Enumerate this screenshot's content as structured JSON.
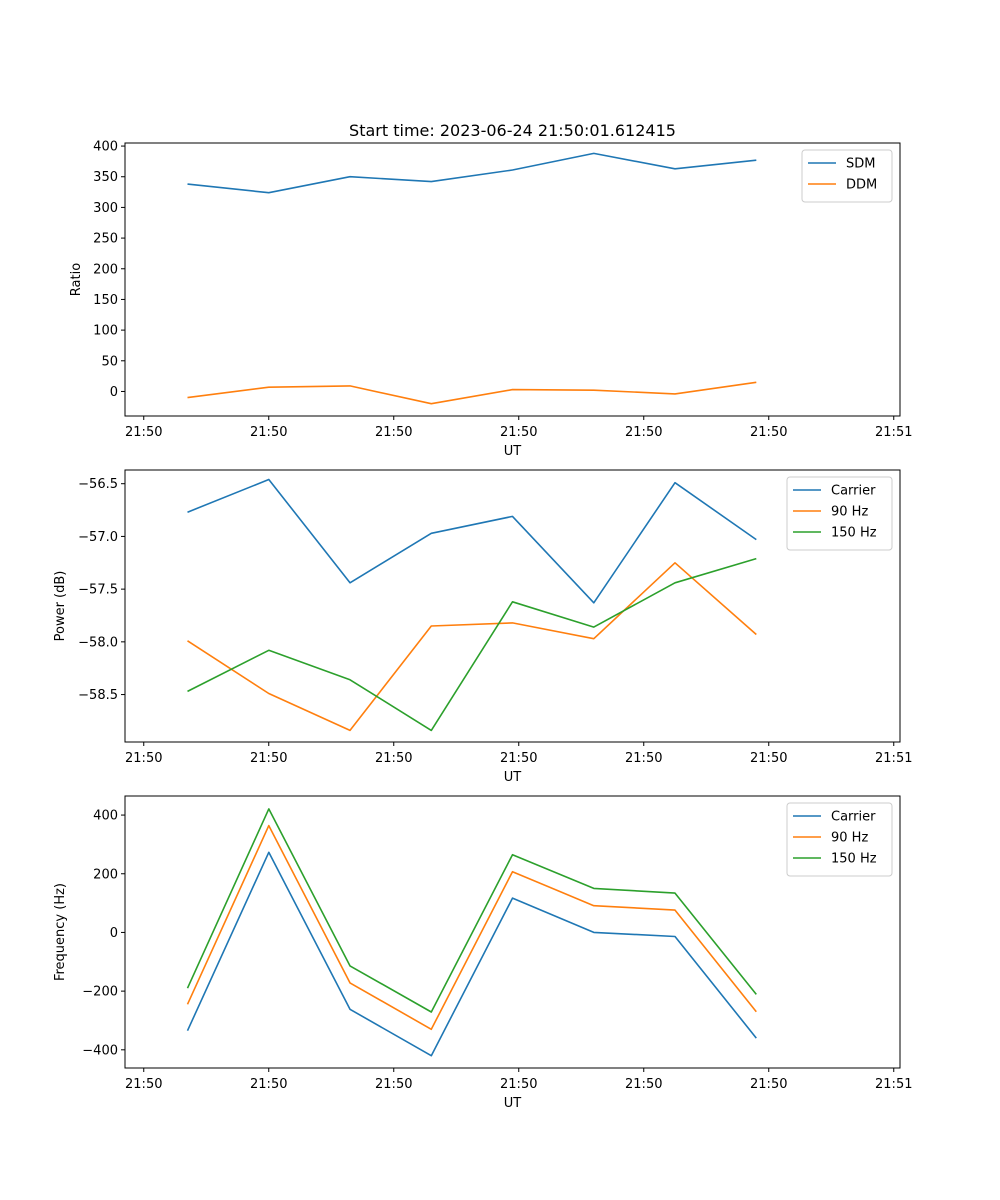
{
  "figure": {
    "title": "Start time: 2023-06-24 21:50:01.612415"
  },
  "chart_data": [
    {
      "type": "line",
      "title": "Start time: 2023-06-24 21:50:01.612415",
      "xlabel": "UT",
      "ylabel": "Ratio",
      "xticklabels": [
        "21:50",
        "21:50",
        "21:50",
        "21:50",
        "21:50",
        "21:50",
        "21:51"
      ],
      "yticks": [
        0,
        50,
        100,
        150,
        200,
        250,
        300,
        350,
        400
      ],
      "ylim": [
        -40,
        405
      ],
      "xlim": [
        0,
        6.2
      ],
      "x": [
        0.5,
        1.15,
        1.8,
        2.45,
        3.1,
        3.75,
        4.4,
        5.05
      ],
      "series": [
        {
          "name": "SDM",
          "color": "#1f77b4",
          "values": [
            338,
            324,
            350,
            342,
            361,
            388,
            363,
            377
          ]
        },
        {
          "name": "DDM",
          "color": "#ff7f0e",
          "values": [
            -10,
            7,
            9,
            -20,
            3,
            2,
            -4,
            15
          ]
        }
      ],
      "legend_position": "top-right"
    },
    {
      "type": "line",
      "xlabel": "UT",
      "ylabel": "Power (dB)",
      "xticklabels": [
        "21:50",
        "21:50",
        "21:50",
        "21:50",
        "21:50",
        "21:50",
        "21:51"
      ],
      "yticks": [
        -58.5,
        -58.0,
        -57.5,
        -57.0,
        -56.5
      ],
      "yticklabels": [
        "−58.5",
        "−58.0",
        "−57.5",
        "−57.0",
        "−56.5"
      ],
      "ylim": [
        -58.95,
        -56.37
      ],
      "xlim": [
        0,
        6.2
      ],
      "x": [
        0.5,
        1.15,
        1.8,
        2.45,
        3.1,
        3.75,
        4.4,
        5.05
      ],
      "series": [
        {
          "name": "Carrier",
          "color": "#1f77b4",
          "values": [
            -56.77,
            -56.46,
            -57.44,
            -56.97,
            -56.81,
            -57.63,
            -56.49,
            -57.03
          ]
        },
        {
          "name": "90 Hz",
          "color": "#ff7f0e",
          "values": [
            -57.99,
            -58.49,
            -58.84,
            -57.85,
            -57.82,
            -57.97,
            -57.25,
            -57.93
          ]
        },
        {
          "name": "150 Hz",
          "color": "#2ca02c",
          "values": [
            -58.47,
            -58.08,
            -58.36,
            -58.84,
            -57.62,
            -57.86,
            -57.44,
            -57.21
          ]
        }
      ],
      "legend_position": "top-right"
    },
    {
      "type": "line",
      "xlabel": "UT",
      "ylabel": "Frequency (Hz)",
      "xticklabels": [
        "21:50",
        "21:50",
        "21:50",
        "21:50",
        "21:50",
        "21:50",
        "21:51"
      ],
      "yticks": [
        -400,
        -200,
        0,
        200,
        400
      ],
      "yticklabels": [
        "−400",
        "−200",
        "0",
        "200",
        "400"
      ],
      "ylim": [
        -462,
        465
      ],
      "xlim": [
        0,
        6.2
      ],
      "x": [
        0.5,
        1.15,
        1.8,
        2.45,
        3.1,
        3.75,
        4.4,
        5.05
      ],
      "series": [
        {
          "name": "Carrier",
          "color": "#1f77b4",
          "values": [
            -335,
            273,
            -262,
            -420,
            117,
            0,
            -14,
            -360
          ]
        },
        {
          "name": "90 Hz",
          "color": "#ff7f0e",
          "values": [
            -245,
            364,
            -172,
            -330,
            207,
            91,
            76,
            -270
          ]
        },
        {
          "name": "150 Hz",
          "color": "#2ca02c",
          "values": [
            -190,
            421,
            -114,
            -271,
            265,
            150,
            134,
            -211
          ]
        }
      ],
      "legend_position": "top-right"
    }
  ]
}
